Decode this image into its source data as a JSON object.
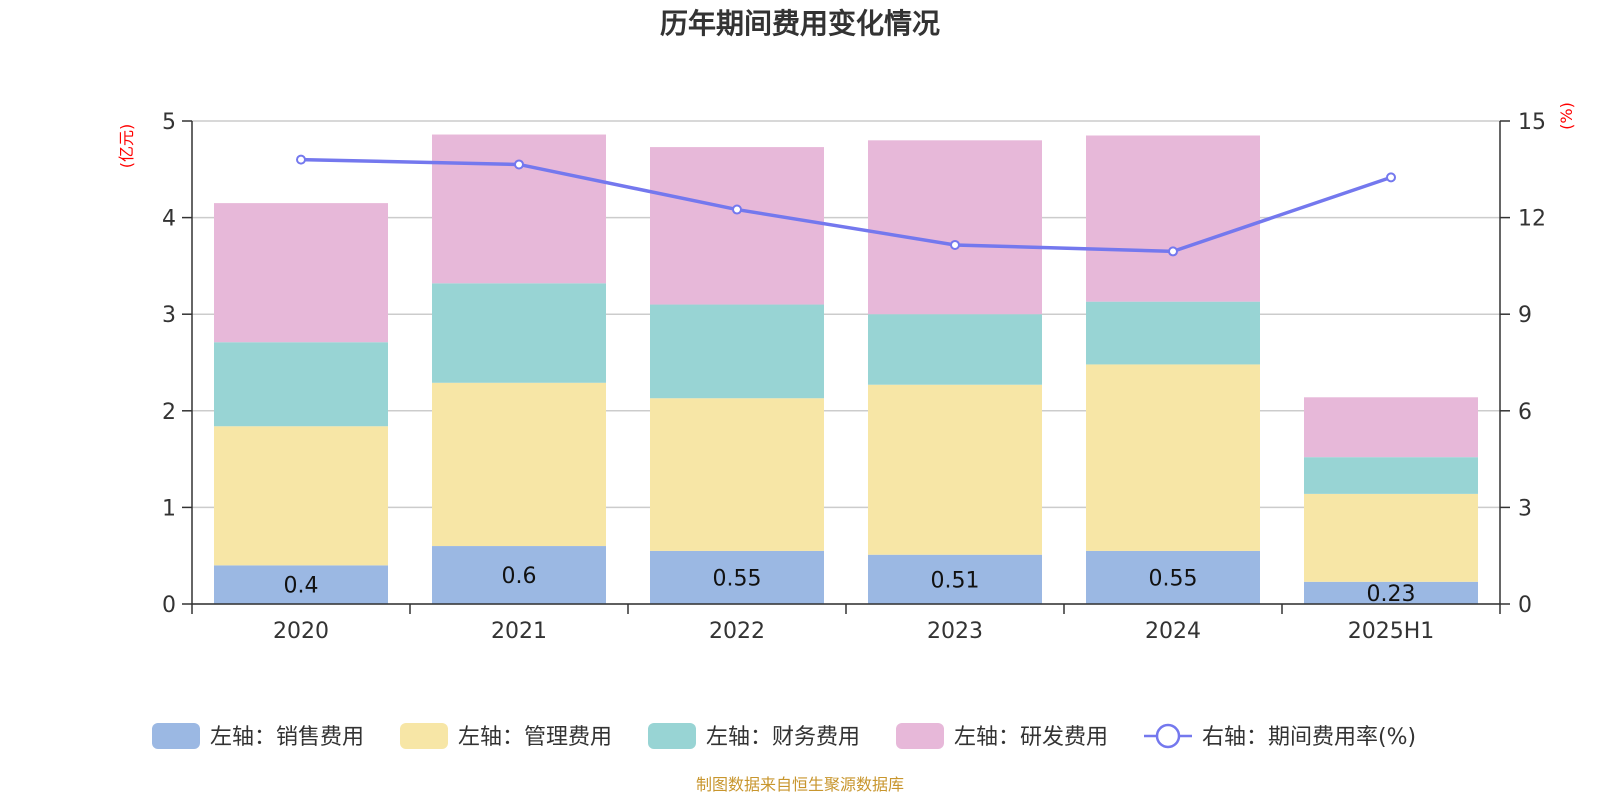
{
  "colors": {
    "sales": "#9bb8e3",
    "admin": "#f7e6a6",
    "finance": "#98d4d4",
    "rnd": "#e7b8d9",
    "rate": "#7478ee",
    "axis_unit": "#ff0000",
    "source": "#c8962e"
  },
  "chart_data": {
    "type": "bar",
    "stacked": true,
    "title": "历年期间费用变化情况",
    "left_axis_unit": "(亿元)",
    "right_axis_unit": "(%)",
    "categories": [
      "2020",
      "2021",
      "2022",
      "2023",
      "2024",
      "2025H1"
    ],
    "ylim_left": [
      0,
      5
    ],
    "yticks_left": [
      "0",
      "1",
      "2",
      "3",
      "4",
      "5"
    ],
    "ylim_right": [
      0,
      15
    ],
    "yticks_right": [
      "0",
      "3",
      "6",
      "9",
      "12",
      "15"
    ],
    "grid": true,
    "legend_position": "bottom",
    "series": [
      {
        "name": "左轴：销售费用",
        "key": "sales",
        "axis": "left",
        "values": [
          0.4,
          0.6,
          0.55,
          0.51,
          0.55,
          0.23
        ],
        "labels": [
          "0.4",
          "0.6",
          "0.55",
          "0.51",
          "0.55",
          "0.23"
        ]
      },
      {
        "name": "左轴：管理费用",
        "key": "admin",
        "axis": "left",
        "values": [
          1.44,
          1.69,
          1.58,
          1.76,
          1.93,
          0.91
        ]
      },
      {
        "name": "左轴：财务费用",
        "key": "finance",
        "axis": "left",
        "values": [
          0.87,
          1.03,
          0.97,
          0.73,
          0.65,
          0.38
        ]
      },
      {
        "name": "左轴：研发费用",
        "key": "rnd",
        "axis": "left",
        "values": [
          1.44,
          1.54,
          1.63,
          1.8,
          1.72,
          0.62
        ]
      },
      {
        "name": "右轴：期间费用率(%)",
        "key": "rate",
        "axis": "right",
        "type": "line",
        "values": [
          13.8,
          13.65,
          12.25,
          11.15,
          10.95,
          13.25
        ]
      }
    ]
  },
  "source_text": "制图数据来自恒生聚源数据库"
}
